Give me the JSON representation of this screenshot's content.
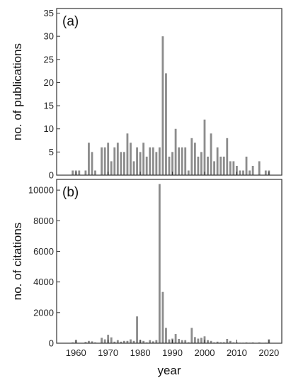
{
  "colors": {
    "bar": "#8c8c8c",
    "axis": "#333333",
    "text": "#111111"
  },
  "chart_data": [
    {
      "type": "bar",
      "panel_label": "(a)",
      "xlabel": "",
      "ylabel": "no. of publications",
      "xlim": [
        1954,
        2024
      ],
      "ylim": [
        0,
        36
      ],
      "yticks": [
        0,
        5,
        10,
        15,
        20,
        25,
        30,
        35
      ],
      "x": [
        1959,
        1960,
        1961,
        1963,
        1964,
        1965,
        1966,
        1968,
        1969,
        1970,
        1971,
        1972,
        1973,
        1974,
        1975,
        1976,
        1977,
        1978,
        1979,
        1980,
        1981,
        1982,
        1983,
        1984,
        1985,
        1986,
        1987,
        1988,
        1989,
        1990,
        1991,
        1992,
        1993,
        1994,
        1995,
        1996,
        1997,
        1998,
        1999,
        2000,
        2001,
        2002,
        2003,
        2004,
        2005,
        2006,
        2007,
        2008,
        2009,
        2010,
        2011,
        2012,
        2013,
        2014,
        2015,
        2017,
        2019,
        2020
      ],
      "values": [
        1,
        1,
        1,
        1,
        7,
        5,
        1,
        6,
        6,
        7,
        3,
        6,
        7,
        5,
        5,
        9,
        7,
        3,
        6,
        5,
        7,
        4,
        6,
        6,
        5,
        6,
        30,
        22,
        4,
        5,
        10,
        6,
        6,
        6,
        1,
        8,
        7,
        4,
        5,
        12,
        4,
        9,
        3,
        6,
        4,
        4,
        8,
        3,
        3,
        2,
        1,
        1,
        4,
        1,
        2,
        3,
        1,
        1
      ],
      "grid": false
    },
    {
      "type": "bar",
      "panel_label": "(b)",
      "xlabel": "year",
      "ylabel": "no. of citations",
      "xlim": [
        1954,
        2024
      ],
      "ylim": [
        0,
        10700
      ],
      "yticks": [
        0,
        2000,
        4000,
        6000,
        8000,
        10000
      ],
      "xticks": [
        1960,
        1970,
        1980,
        1990,
        2000,
        2010,
        2020
      ],
      "x": [
        1959,
        1960,
        1963,
        1964,
        1965,
        1966,
        1968,
        1969,
        1970,
        1971,
        1972,
        1973,
        1974,
        1975,
        1976,
        1977,
        1978,
        1979,
        1980,
        1981,
        1982,
        1983,
        1984,
        1985,
        1986,
        1987,
        1988,
        1989,
        1990,
        1991,
        1992,
        1993,
        1994,
        1995,
        1996,
        1997,
        1998,
        1999,
        2000,
        2001,
        2002,
        2003,
        2004,
        2005,
        2006,
        2007,
        2008,
        2009,
        2010,
        2011,
        2012,
        2013,
        2014,
        2015,
        2017,
        2019,
        2020
      ],
      "values": [
        50,
        200,
        80,
        150,
        120,
        50,
        350,
        250,
        550,
        380,
        100,
        200,
        100,
        150,
        150,
        250,
        150,
        1750,
        200,
        150,
        50,
        200,
        120,
        200,
        10400,
        3350,
        1000,
        250,
        300,
        600,
        280,
        200,
        200,
        60,
        1000,
        400,
        300,
        350,
        450,
        200,
        150,
        50,
        100,
        60,
        60,
        280,
        150,
        50,
        50,
        30,
        30,
        50,
        30,
        50,
        50,
        30,
        250
      ],
      "grid": false
    }
  ]
}
